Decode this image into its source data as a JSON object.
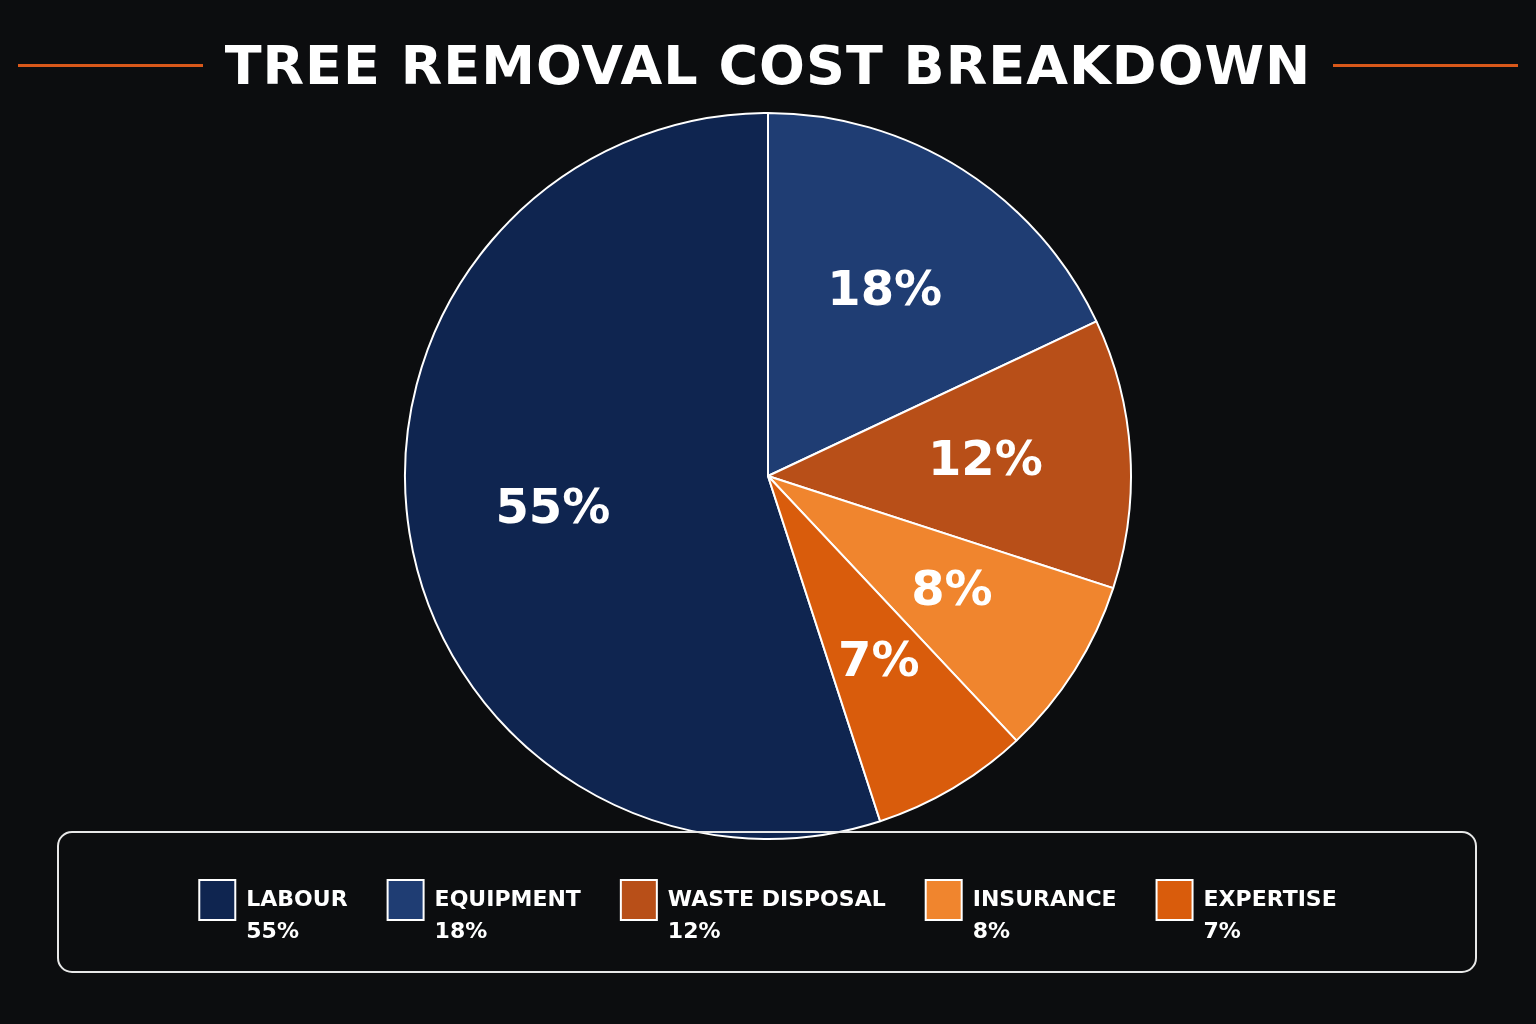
{
  "chart_data": {
    "type": "pie",
    "title": "TREE REMOVAL COST BREAKDOWN",
    "categories": [
      "LABOUR",
      "EQUIPMENT",
      "WASTE DISPOSAL",
      "INSURANCE",
      "EXPERTISE"
    ],
    "values": [
      55,
      18,
      12,
      8,
      7
    ],
    "value_labels": [
      "55%",
      "18%",
      "12%",
      "8%",
      "7%"
    ],
    "colors": [
      "#0f2550",
      "#1f3d73",
      "#b84f18",
      "#f0852e",
      "#d95c0c"
    ],
    "legend": "bottom"
  }
}
